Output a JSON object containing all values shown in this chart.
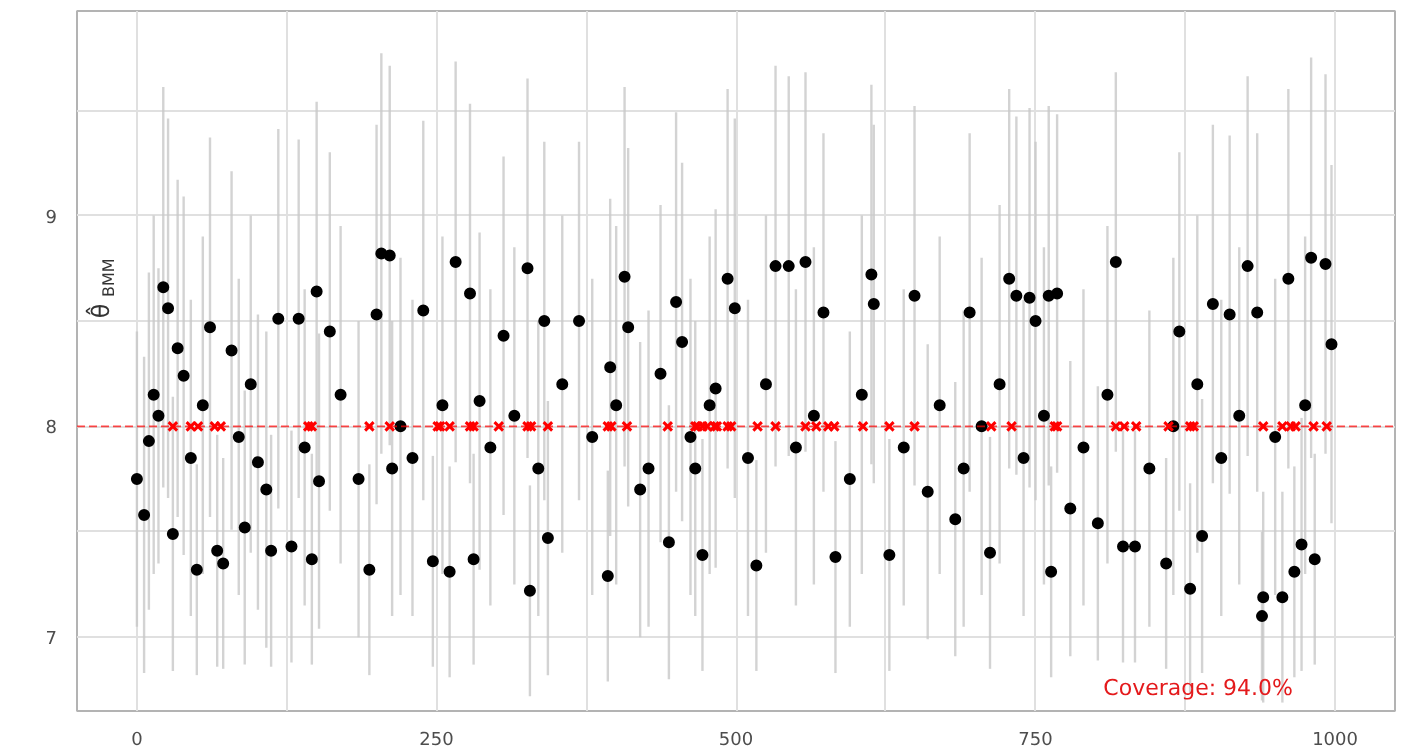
{
  "chart_data": {
    "type": "scatter",
    "ylabel": "θ̂$_{BMM}$",
    "xlim": [
      -50,
      1050
    ],
    "ylim": [
      6.65,
      9.97
    ],
    "xticks": [
      0,
      {
        "value": 125,
        "label": null
      },
      250,
      {
        "value": 375,
        "label": null
      },
      500,
      {
        "value": 625,
        "label": null
      },
      750,
      {
        "value": 875,
        "label": null
      },
      1000
    ],
    "yticks": [
      7,
      {
        "value": 7.5,
        "label": null
      },
      8,
      {
        "value": 8.5,
        "label": null
      },
      9,
      {
        "value": 9.5,
        "label": null
      }
    ],
    "grid": true,
    "series": [
      {
        "marker": "circle",
        "color": "#000000",
        "x": [
          0,
          6,
          10,
          14,
          18,
          22,
          26,
          30,
          34,
          39,
          45,
          50,
          55,
          61,
          67,
          72,
          79,
          85,
          90,
          95,
          101,
          108,
          112,
          118,
          129,
          135,
          140,
          146,
          150,
          152,
          161,
          170,
          185,
          194,
          200,
          204,
          211,
          213,
          220,
          230,
          239,
          247,
          255,
          261,
          266,
          278,
          281,
          286,
          295,
          306,
          315,
          326,
          328,
          335,
          340,
          343,
          355,
          369,
          380,
          393,
          395,
          400,
          407,
          410,
          420,
          427,
          437,
          444,
          450,
          455,
          462,
          466,
          472,
          478,
          483,
          493,
          499,
          510,
          517,
          525,
          533,
          544,
          550,
          558,
          565,
          573,
          583,
          595,
          605,
          613,
          615,
          628,
          640,
          649,
          660,
          670,
          683,
          690,
          695,
          705,
          712,
          720,
          728,
          734,
          740,
          745,
          750,
          757,
          761,
          763,
          768,
          779,
          790,
          802,
          810,
          817,
          823,
          833,
          845,
          859,
          865,
          870,
          879,
          885,
          889,
          898,
          905,
          912,
          920,
          927,
          935,
          939,
          940,
          950,
          956,
          961,
          966,
          972,
          975,
          980,
          983,
          992,
          997
        ],
        "values": [
          7.75,
          7.58,
          7.93,
          8.15,
          8.05,
          8.66,
          8.56,
          7.49,
          8.37,
          8.24,
          7.85,
          7.32,
          8.1,
          8.47,
          7.41,
          7.35,
          8.36,
          7.95,
          7.52,
          8.2,
          7.83,
          7.7,
          7.41,
          8.51,
          7.43,
          8.51,
          7.9,
          7.37,
          8.64,
          7.74,
          8.45,
          8.15,
          7.75,
          7.32,
          8.53,
          8.82,
          8.81,
          7.8,
          8.0,
          7.85,
          8.55,
          7.36,
          8.1,
          7.31,
          8.78,
          8.63,
          7.37,
          8.12,
          7.9,
          8.43,
          8.05,
          8.75,
          7.22,
          7.8,
          8.5,
          7.47,
          8.2,
          8.5,
          7.95,
          7.29,
          8.28,
          8.1,
          8.71,
          8.47,
          7.7,
          7.8,
          8.25,
          7.45,
          8.59,
          8.4,
          7.95,
          7.8,
          7.39,
          8.1,
          8.18,
          8.7,
          8.56,
          7.85,
          7.34,
          8.2,
          8.76,
          8.76,
          7.9,
          8.78,
          8.05,
          8.54,
          7.38,
          7.75,
          8.15,
          8.72,
          8.58,
          7.39,
          7.9,
          8.62,
          7.69,
          8.1,
          7.56,
          7.8,
          8.54,
          8.0,
          7.4,
          8.2,
          8.7,
          8.62,
          7.85,
          8.61,
          8.5,
          8.05,
          8.62,
          7.31,
          8.63,
          7.61,
          7.9,
          7.54,
          8.15,
          8.78,
          7.43,
          7.43,
          7.8,
          7.35,
          8.0,
          8.45,
          7.23,
          8.2,
          7.48,
          8.58,
          7.85,
          8.53,
          8.05,
          8.76,
          8.54,
          7.1,
          7.19,
          7.95,
          7.19,
          8.7,
          7.31,
          7.44,
          8.1,
          8.8,
          7.37,
          8.77,
          8.39
        ],
        "errors": [
          0.7,
          0.75,
          0.8,
          0.85,
          0.7,
          0.95,
          0.9,
          0.65,
          0.8,
          0.85,
          0.75,
          0.5,
          0.8,
          0.9,
          0.55,
          0.5,
          0.85,
          0.75,
          0.65,
          0.8,
          0.7,
          0.75,
          0.55,
          0.9,
          0.55,
          0.85,
          0.75,
          0.5,
          0.9,
          0.7,
          0.85,
          0.8,
          0.75,
          0.5,
          0.9,
          0.95,
          0.9,
          0.7,
          0.8,
          0.75,
          0.9,
          0.5,
          0.8,
          0.5,
          0.95,
          0.9,
          0.5,
          0.8,
          0.75,
          0.85,
          0.8,
          0.9,
          0.5,
          0.7,
          0.85,
          0.65,
          0.8,
          0.85,
          0.75,
          0.5,
          0.8,
          0.85,
          0.9,
          0.85,
          0.7,
          0.75,
          0.8,
          0.65,
          0.9,
          0.85,
          0.75,
          0.7,
          0.55,
          0.8,
          0.85,
          0.9,
          0.9,
          0.75,
          0.5,
          0.8,
          0.95,
          0.9,
          0.75,
          0.9,
          0.8,
          0.85,
          0.55,
          0.7,
          0.85,
          0.9,
          0.85,
          0.55,
          0.75,
          0.9,
          0.7,
          0.8,
          0.65,
          0.75,
          0.85,
          0.8,
          0.55,
          0.85,
          0.9,
          0.85,
          0.75,
          0.9,
          0.85,
          0.8,
          0.9,
          0.5,
          0.85,
          0.7,
          0.75,
          0.65,
          0.8,
          0.9,
          0.55,
          0.55,
          0.75,
          0.5,
          0.8,
          0.85,
          0.5,
          0.8,
          0.65,
          0.85,
          0.75,
          0.85,
          0.8,
          0.9,
          0.85,
          0.4,
          0.5,
          0.75,
          0.5,
          0.9,
          0.5,
          0.6,
          0.8,
          0.95,
          0.5,
          0.9,
          0.85
        ]
      },
      {
        "marker": "cross",
        "color": "#ff0000",
        "x": [
          30,
          45,
          51,
          65,
          70,
          143,
          146,
          194,
          211,
          251,
          253,
          261,
          278,
          281,
          302,
          326,
          329,
          343,
          393,
          396,
          409,
          443,
          466,
          468,
          472,
          476,
          482,
          484,
          493,
          496,
          518,
          533,
          558,
          567,
          577,
          582,
          606,
          628,
          649,
          713,
          730,
          766,
          768,
          817,
          824,
          834,
          861,
          879,
          882,
          940,
          956,
          963,
          967,
          982,
          993
        ],
        "values": [
          8,
          8,
          8,
          8,
          8,
          8,
          8,
          8,
          8,
          8,
          8,
          8,
          8,
          8,
          8,
          8,
          8,
          8,
          8,
          8,
          8,
          8,
          8,
          8,
          8,
          8,
          8,
          8,
          8,
          8,
          8,
          8,
          8,
          8,
          8,
          8,
          8,
          8,
          8,
          8,
          8,
          8,
          8,
          8,
          8,
          8,
          8,
          8,
          8,
          8,
          8,
          8,
          8,
          8,
          8
        ]
      }
    ],
    "ref_lines": [
      {
        "axis": "y",
        "value": 8,
        "color": "#ff0000",
        "line_style": "dashed"
      }
    ],
    "annotations": [
      "Coverage: 94.0%"
    ]
  }
}
